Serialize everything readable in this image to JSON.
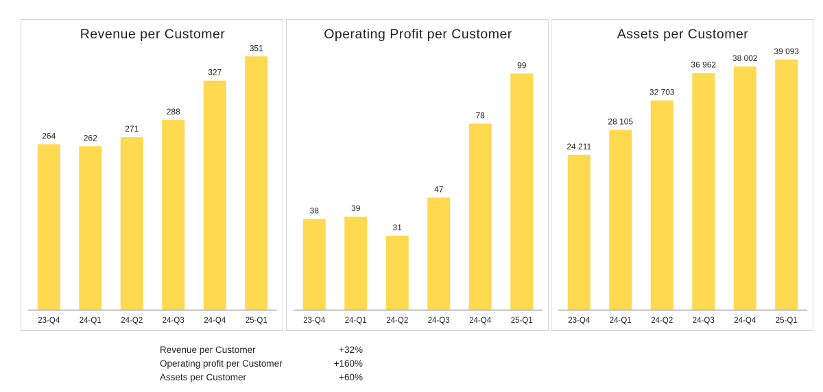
{
  "chart_data": [
    {
      "type": "bar",
      "title": "Revenue per Customer",
      "categories": [
        "23-Q4",
        "24-Q1",
        "24-Q2",
        "24-Q3",
        "24-Q4",
        "25-Q1"
      ],
      "values": [
        264,
        262,
        271,
        288,
        327,
        351
      ],
      "labels": [
        "264",
        "262",
        "271",
        "288",
        "327",
        "351"
      ],
      "ylim": [
        100,
        360
      ],
      "xlabel": "",
      "ylabel": "",
      "grid": false
    },
    {
      "type": "bar",
      "title": "Operating Profit per Customer",
      "categories": [
        "23-Q4",
        "24-Q1",
        "24-Q2",
        "24-Q3",
        "24-Q4",
        "25-Q1"
      ],
      "values": [
        38,
        39,
        31,
        47,
        78,
        99
      ],
      "labels": [
        "38",
        "39",
        "31",
        "47",
        "78",
        "99"
      ],
      "ylim": [
        0,
        110
      ],
      "xlabel": "",
      "ylabel": "",
      "grid": false
    },
    {
      "type": "bar",
      "title": "Assets per Customer",
      "categories": [
        "23-Q4",
        "24-Q1",
        "24-Q2",
        "24-Q3",
        "24-Q4",
        "25-Q1"
      ],
      "values": [
        24211,
        28105,
        32703,
        36962,
        38002,
        39093
      ],
      "labels": [
        "24 211",
        "28 105",
        "32 703",
        "36 962",
        "38 002",
        "39 093"
      ],
      "ylim": [
        0,
        41000
      ],
      "xlabel": "",
      "ylabel": "",
      "grid": false
    }
  ],
  "colors": {
    "bar": "#FFD94F",
    "axis": "#A6A6A6",
    "text": "#222222"
  },
  "summary": [
    {
      "label": "Revenue per Customer",
      "value": "+32%"
    },
    {
      "label": "Operating profit per Customer",
      "value": "+160%"
    },
    {
      "label": "Assets per Customer",
      "value": "+60%"
    }
  ]
}
